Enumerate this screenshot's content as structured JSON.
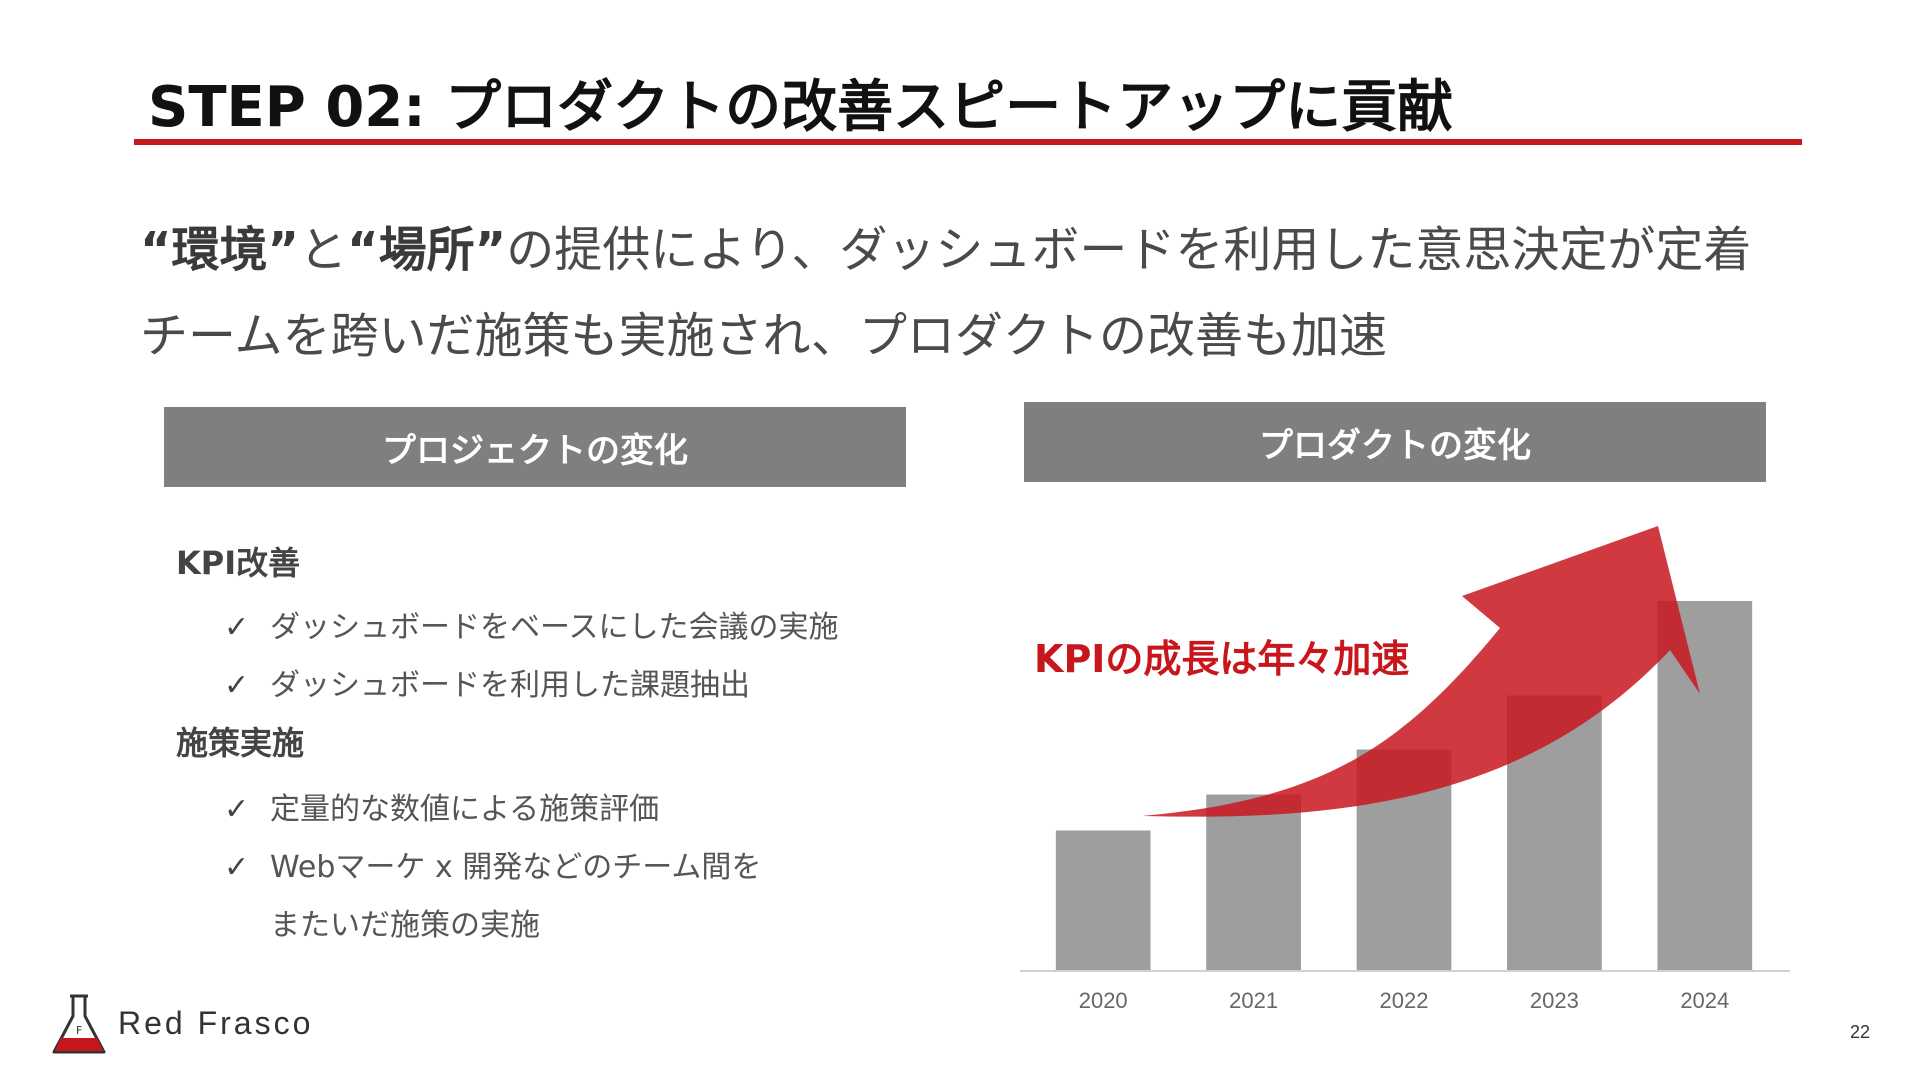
{
  "slide": {
    "title": "STEP 02: プロダクトの改善スピートアップに貢献",
    "lead_line1": {
      "q1": "“環境”",
      "t1": "と",
      "q2": "“場所”",
      "t2": "の提供により、ダッシュボードを利用した意思決定が定着"
    },
    "lead_line2": "チームを跨いだ施策も実施され、プロダクトの改善も加速",
    "page_number": "22"
  },
  "left_panel": {
    "header": "プロジェクトの変化",
    "sections": [
      {
        "title": "KPI改善",
        "items": [
          "ダッシュボードをベースにした会議の実施",
          "ダッシュボードを利用した課題抽出"
        ]
      },
      {
        "title": "施策実施",
        "items": [
          "定量的な数値による施策評価",
          "Webマーケ x 開発などのチーム間を"
        ],
        "continuation": "またいだ施策の実施"
      }
    ],
    "check_glyph": "✓"
  },
  "right_panel": {
    "header": "プロダクトの変化",
    "annotation": "KPIの成長は年々加速"
  },
  "chart_data": {
    "type": "bar",
    "categories": [
      "2020",
      "2021",
      "2022",
      "2023",
      "2024"
    ],
    "values": [
      31,
      39,
      49,
      61,
      82
    ],
    "ylim": [
      0,
      100
    ],
    "bar_color": "#9e9e9e",
    "arrow_color": "#c8161d",
    "title": "",
    "xlabel": "",
    "ylabel": "",
    "grid": false
  },
  "brand": {
    "name": "Red Frasco",
    "logo_icon": "flask-icon",
    "accent": "#c8161d"
  }
}
